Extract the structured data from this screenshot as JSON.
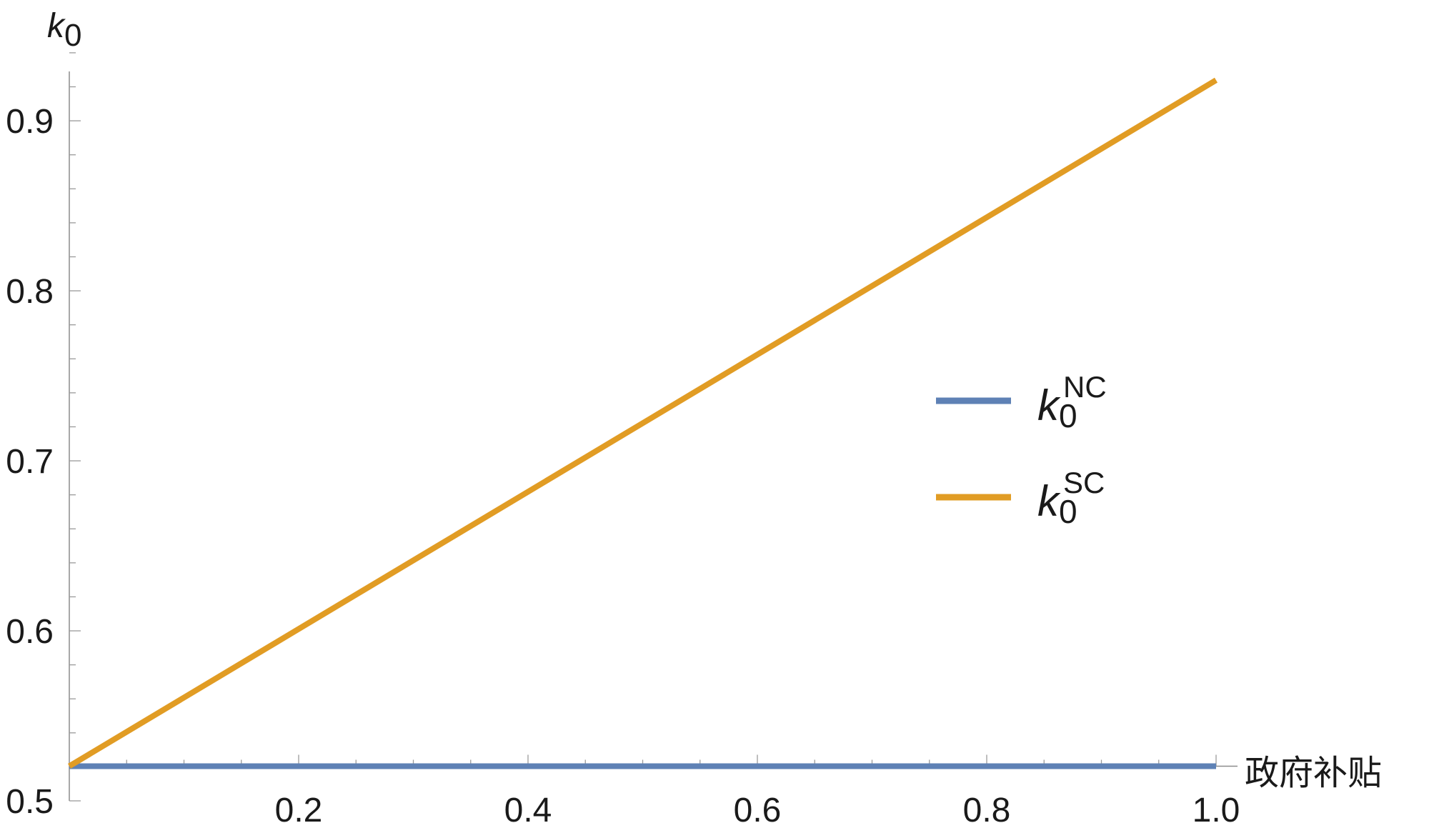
{
  "chart_data": {
    "type": "line",
    "xlabel": "政府补贴",
    "ylabel": {
      "base": "k",
      "sub": "0"
    },
    "xlim": [
      0,
      1.0
    ],
    "ylim": [
      0.5,
      0.945
    ],
    "x_axis_crosses_y_at": 0.5204,
    "x_ticks": [
      0.2,
      0.4,
      0.6,
      0.8,
      1.0
    ],
    "x_tick_labels": [
      "0.2",
      "0.4",
      "0.6",
      "0.8",
      "1.0"
    ],
    "y_ticks": [
      0.5,
      0.6,
      0.7,
      0.8,
      0.9
    ],
    "y_tick_labels": [
      "0.5",
      "0.6",
      "0.7",
      "0.8",
      "0.9"
    ],
    "grid": false,
    "legend_position": "right",
    "series": [
      {
        "name": {
          "base": "k",
          "sub": "0",
          "sup": "NC"
        },
        "color": "#5e81b5",
        "x": [
          0,
          1.0
        ],
        "y": [
          0.5204,
          0.5204
        ]
      },
      {
        "name": {
          "base": "k",
          "sub": "0",
          "sup": "SC"
        },
        "color": "#e19c24",
        "x": [
          0,
          1.0
        ],
        "y": [
          0.5204,
          0.9239
        ]
      }
    ]
  }
}
